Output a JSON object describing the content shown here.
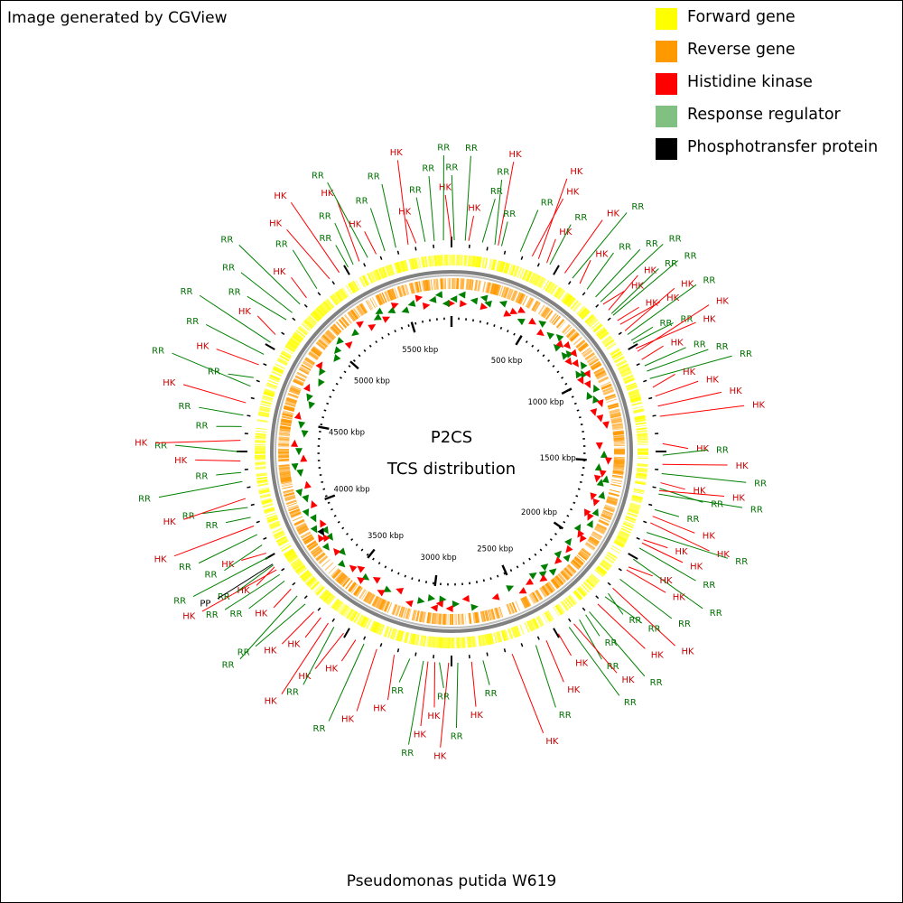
{
  "header": {
    "credit": "Image generated by CGView"
  },
  "legend": [
    {
      "label": "Forward gene",
      "color": "#ffff00"
    },
    {
      "label": "Reverse gene",
      "color": "#ff9900"
    },
    {
      "label": "Histidine kinase",
      "color": "#ff0000"
    },
    {
      "label": "Response regulator",
      "color": "#80c080"
    },
    {
      "label": "Phosphotransfer protein",
      "color": "#000000"
    }
  ],
  "center": {
    "title": "P2CS",
    "subtitle": "TCS distribution"
  },
  "footer": {
    "organism": "Pseudomonas putida W619"
  },
  "map": {
    "genome_length_kbp": 5775,
    "ticks_kbp": [
      500,
      1000,
      1500,
      2000,
      2500,
      3000,
      3500,
      4000,
      4500,
      5000,
      5500
    ],
    "tick_label_suffix": " kbp",
    "colors": {
      "hk_label": "#cc0000",
      "rr_label": "#007000",
      "pp_label": "#000000",
      "hk_line": "#ff0000",
      "rr_line": "#008000",
      "pp_line": "#000000",
      "backbone": "#808080",
      "forward": "#ffff00",
      "reverse": "#ff9900",
      "hk_marker": "#ff0000",
      "rr_marker": "#008000"
    },
    "features": [
      {
        "pos": 0,
        "type": "HK"
      },
      {
        "pos": 12,
        "type": "RR"
      },
      {
        "pos": 60,
        "type": "RR"
      },
      {
        "pos": 75,
        "type": "HK"
      },
      {
        "pos": 135,
        "type": "RR"
      },
      {
        "pos": 190,
        "type": "RR"
      },
      {
        "pos": 205,
        "type": "HK"
      },
      {
        "pos": 220,
        "type": "RR"
      },
      {
        "pos": 305,
        "type": "RR"
      },
      {
        "pos": 360,
        "type": "HK"
      },
      {
        "pos": 390,
        "type": "HK"
      },
      {
        "pos": 430,
        "type": "HK"
      },
      {
        "pos": 445,
        "type": "RR"
      },
      {
        "pos": 520,
        "type": "HK"
      },
      {
        "pos": 560,
        "type": "RR"
      },
      {
        "pos": 600,
        "type": "HK"
      },
      {
        "pos": 640,
        "type": "RR"
      },
      {
        "pos": 690,
        "type": "RR"
      },
      {
        "pos": 720,
        "type": "RR"
      },
      {
        "pos": 735,
        "type": "HK"
      },
      {
        "pos": 770,
        "type": "HK"
      },
      {
        "pos": 790,
        "type": "RR"
      },
      {
        "pos": 800,
        "type": "RR"
      },
      {
        "pos": 830,
        "type": "HK"
      },
      {
        "pos": 850,
        "type": "HK"
      },
      {
        "pos": 885,
        "type": "HK"
      },
      {
        "pos": 905,
        "type": "RR"
      },
      {
        "pos": 935,
        "type": "RR"
      },
      {
        "pos": 950,
        "type": "RR"
      },
      {
        "pos": 975,
        "type": "HK"
      },
      {
        "pos": 990,
        "type": "HK"
      },
      {
        "pos": 1030,
        "type": "HK"
      },
      {
        "pos": 1060,
        "type": "RR"
      },
      {
        "pos": 1085,
        "type": "RR"
      },
      {
        "pos": 1120,
        "type": "RR"
      },
      {
        "pos": 1160,
        "type": "HK"
      },
      {
        "pos": 1200,
        "type": "HK"
      },
      {
        "pos": 1245,
        "type": "HK"
      },
      {
        "pos": 1290,
        "type": "HK"
      },
      {
        "pos": 1410,
        "type": "HK"
      },
      {
        "pos": 1460,
        "type": "RR"
      },
      {
        "pos": 1500,
        "type": "HK"
      },
      {
        "pos": 1540,
        "type": "RR"
      },
      {
        "pos": 1580,
        "type": "HK"
      },
      {
        "pos": 1605,
        "type": "RR"
      },
      {
        "pos": 1615,
        "type": "HK"
      },
      {
        "pos": 1630,
        "type": "RR"
      },
      {
        "pos": 1700,
        "type": "RR"
      },
      {
        "pos": 1730,
        "type": "HK"
      },
      {
        "pos": 1760,
        "type": "HK"
      },
      {
        "pos": 1805,
        "type": "RR"
      },
      {
        "pos": 1840,
        "type": "HK"
      },
      {
        "pos": 1855,
        "type": "HK"
      },
      {
        "pos": 1880,
        "type": "RR"
      },
      {
        "pos": 1935,
        "type": "RR"
      },
      {
        "pos": 1975,
        "type": "HK"
      },
      {
        "pos": 1990,
        "type": "HK"
      },
      {
        "pos": 2040,
        "type": "RR"
      },
      {
        "pos": 2090,
        "type": "HK"
      },
      {
        "pos": 2120,
        "type": "RR"
      },
      {
        "pos": 2140,
        "type": "RR"
      },
      {
        "pos": 2185,
        "type": "HK"
      },
      {
        "pos": 2235,
        "type": "RR"
      },
      {
        "pos": 2255,
        "type": "RR"
      },
      {
        "pos": 2290,
        "type": "RR"
      },
      {
        "pos": 2320,
        "type": "HK"
      },
      {
        "pos": 2345,
        "type": "RR"
      },
      {
        "pos": 2400,
        "type": "HK"
      },
      {
        "pos": 2460,
        "type": "HK"
      },
      {
        "pos": 2510,
        "type": "RR"
      },
      {
        "pos": 2620,
        "type": "HK"
      },
      {
        "pos": 2750,
        "type": "RR"
      },
      {
        "pos": 2800,
        "type": "HK"
      },
      {
        "pos": 2860,
        "type": "RR"
      },
      {
        "pos": 2900,
        "type": "HK"
      },
      {
        "pos": 2940,
        "type": "RR"
      },
      {
        "pos": 2960,
        "type": "HK"
      },
      {
        "pos": 2990,
        "type": "HK"
      },
      {
        "pos": 3010,
        "type": "RR"
      },
      {
        "pos": 3070,
        "type": "RR"
      },
      {
        "pos": 3140,
        "type": "HK"
      },
      {
        "pos": 3220,
        "type": "HK"
      },
      {
        "pos": 3280,
        "type": "RR"
      },
      {
        "pos": 3320,
        "type": "HK"
      },
      {
        "pos": 3380,
        "type": "HK"
      },
      {
        "pos": 3430,
        "type": "RR"
      },
      {
        "pos": 3460,
        "type": "HK"
      },
      {
        "pos": 3500,
        "type": "HK"
      },
      {
        "pos": 3540,
        "type": "HK"
      },
      {
        "pos": 3590,
        "type": "RR"
      },
      {
        "pos": 3640,
        "type": "RR"
      },
      {
        "pos": 3680,
        "type": "HK"
      },
      {
        "pos": 3725,
        "type": "RR"
      },
      {
        "pos": 3760,
        "type": "RR"
      },
      {
        "pos": 3785,
        "type": "HK"
      },
      {
        "pos": 3800,
        "type": "HK"
      },
      {
        "pos": 3810,
        "type": "RR"
      },
      {
        "pos": 3815,
        "type": "PP"
      },
      {
        "pos": 3850,
        "type": "RR"
      },
      {
        "pos": 3870,
        "type": "HK"
      },
      {
        "pos": 3910,
        "type": "RR"
      },
      {
        "pos": 3960,
        "type": "RR"
      },
      {
        "pos": 4000,
        "type": "HK"
      },
      {
        "pos": 4040,
        "type": "RR"
      },
      {
        "pos": 4085,
        "type": "RR"
      },
      {
        "pos": 4125,
        "type": "HK"
      },
      {
        "pos": 4200,
        "type": "RR"
      },
      {
        "pos": 4240,
        "type": "RR"
      },
      {
        "pos": 4290,
        "type": "HK"
      },
      {
        "pos": 4330,
        "type": "RR"
      },
      {
        "pos": 4380,
        "type": "HK"
      },
      {
        "pos": 4440,
        "type": "RR"
      },
      {
        "pos": 4490,
        "type": "RR"
      },
      {
        "pos": 4545,
        "type": "HK"
      },
      {
        "pos": 4620,
        "type": "RR"
      },
      {
        "pos": 4660,
        "type": "RR"
      },
      {
        "pos": 4720,
        "type": "HK"
      },
      {
        "pos": 4770,
        "type": "RR"
      },
      {
        "pos": 4830,
        "type": "RR"
      },
      {
        "pos": 4870,
        "type": "HK"
      },
      {
        "pos": 4950,
        "type": "RR"
      },
      {
        "pos": 4990,
        "type": "RR"
      },
      {
        "pos": 5040,
        "type": "RR"
      },
      {
        "pos": 5080,
        "type": "HK"
      },
      {
        "pos": 5140,
        "type": "RR"
      },
      {
        "pos": 5210,
        "type": "HK"
      },
      {
        "pos": 5260,
        "type": "HK"
      },
      {
        "pos": 5305,
        "type": "RR"
      },
      {
        "pos": 5330,
        "type": "RR"
      },
      {
        "pos": 5360,
        "type": "HK"
      },
      {
        "pos": 5400,
        "type": "RR"
      },
      {
        "pos": 5440,
        "type": "HK"
      },
      {
        "pos": 5480,
        "type": "RR"
      },
      {
        "pos": 5530,
        "type": "RR"
      },
      {
        "pos": 5585,
        "type": "HK"
      },
      {
        "pos": 5620,
        "type": "HK"
      },
      {
        "pos": 5660,
        "type": "RR"
      },
      {
        "pos": 5700,
        "type": "RR"
      },
      {
        "pos": 5740,
        "type": "RR"
      }
    ]
  }
}
